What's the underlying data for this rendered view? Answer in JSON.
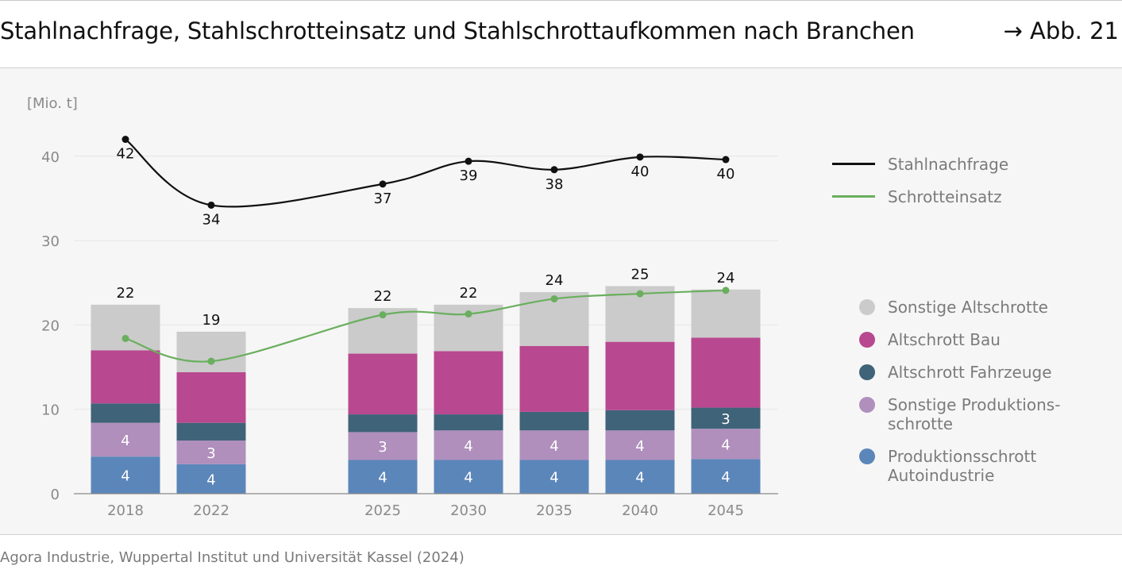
{
  "header": {
    "title": "Stahlnachfrage, Stahlschrotteinsatz und Stahlschrottaufkommen nach Branchen",
    "figure_ref": "→ Abb. 21"
  },
  "source": "Agora Industrie, Wuppertal Institut und Universität Kassel (2024)",
  "colors": {
    "produktion_auto": "#5b86ba",
    "sonstige_produktion": "#b08fbc",
    "fahrzeuge": "#3f6378",
    "bau": "#b8488f",
    "sonstige_alt": "#cbcbcb",
    "stahlnachfrage": "#111111",
    "schrotteinsatz": "#6aaf5e"
  },
  "legend": {
    "lines": [
      {
        "name": "Stahlnachfrage",
        "color": "#111111"
      },
      {
        "name": "Schrotteinsatz",
        "color": "#6aaf5e"
      }
    ],
    "stacks": [
      {
        "name": "Sonstige Altschrotte",
        "color": "#cbcbcb"
      },
      {
        "name": "Altschrott Bau",
        "color": "#b8488f"
      },
      {
        "name": "Altschrott Fahrzeuge",
        "color": "#3f6378"
      },
      {
        "name": "Sonstige Produktions-\nschrotte",
        "color": "#b08fbc"
      },
      {
        "name": "Produktionsschrott\nAutoindustrie",
        "color": "#5b86ba"
      }
    ]
  },
  "chart_data": {
    "type": "bar",
    "stacked": true,
    "ylabel": "[Mio. t]",
    "ylim": [
      0,
      45
    ],
    "yticks": [
      0,
      10,
      20,
      30,
      40
    ],
    "categories": [
      "2018",
      "2022",
      "2025",
      "2030",
      "2035",
      "2040",
      "2045"
    ],
    "series": [
      {
        "name": "Produktionsschrott Autoindustrie",
        "values": [
          4.4,
          3.5,
          4.0,
          4.0,
          4.0,
          4.0,
          4.1
        ],
        "labels": [
          "4",
          "4",
          "4",
          "4",
          "4",
          "4",
          "4"
        ]
      },
      {
        "name": "Sonstige Produktionsschrotte",
        "values": [
          4.0,
          2.8,
          3.3,
          3.5,
          3.5,
          3.5,
          3.6
        ],
        "labels": [
          "4",
          "3",
          "3",
          "4",
          "4",
          "4",
          "4"
        ]
      },
      {
        "name": "Altschrott Fahrzeuge",
        "values": [
          2.3,
          2.1,
          2.1,
          1.9,
          2.2,
          2.4,
          2.5
        ],
        "labels": [
          "",
          "",
          "",
          "",
          "",
          "",
          "3"
        ]
      },
      {
        "name": "Altschrott Bau",
        "values": [
          6.3,
          6.0,
          7.2,
          7.5,
          7.8,
          8.1,
          8.3
        ],
        "labels": [
          "",
          "",
          "",
          "",
          "",
          "",
          ""
        ]
      },
      {
        "name": "Sonstige Altschrotte",
        "values": [
          5.4,
          4.8,
          5.4,
          5.5,
          6.4,
          6.6,
          5.7
        ],
        "labels": [
          "",
          "",
          "",
          "",
          "",
          "",
          ""
        ]
      }
    ],
    "totals": [
      "22",
      "19",
      "22",
      "22",
      "24",
      "25",
      "24"
    ],
    "lines": [
      {
        "name": "Stahlnachfrage",
        "values": [
          42.0,
          34.2,
          36.7,
          39.4,
          38.4,
          39.9,
          39.6
        ],
        "labels": [
          "42",
          "34",
          "37",
          "39",
          "38",
          "40",
          "40"
        ]
      },
      {
        "name": "Schrotteinsatz",
        "values": [
          18.4,
          15.7,
          21.2,
          21.3,
          23.1,
          23.7,
          24.1
        ]
      }
    ]
  }
}
